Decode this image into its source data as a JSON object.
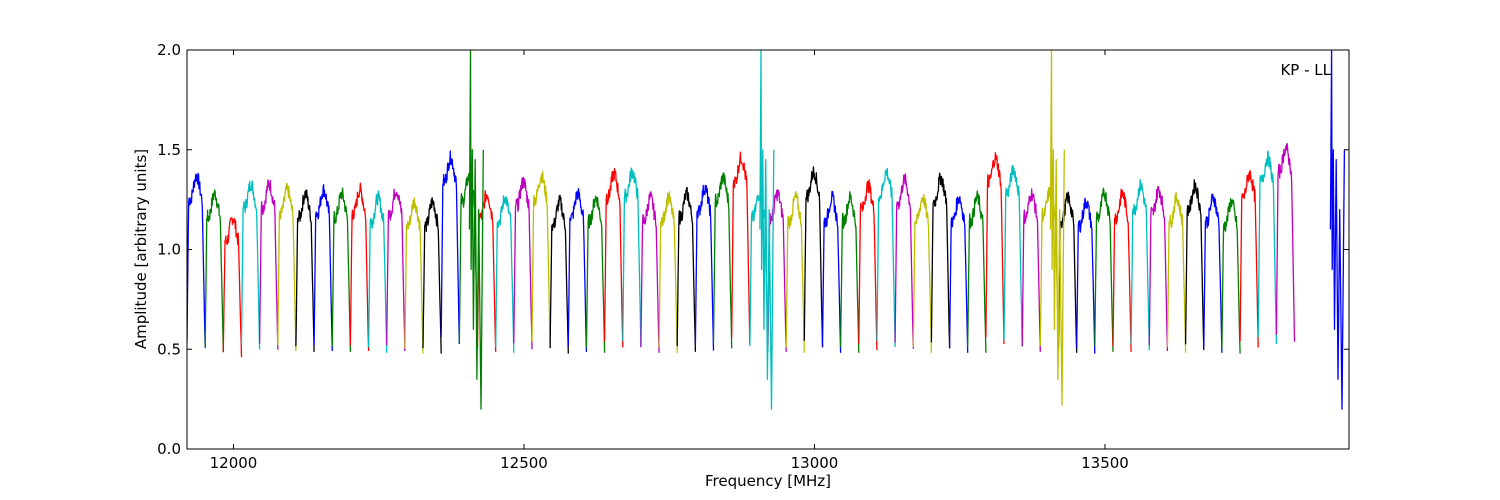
{
  "chart_data": {
    "type": "line",
    "title": "",
    "xlabel": "Frequency [MHz]",
    "ylabel": "Amplitude [arbitrary units]",
    "annotation": "KP - LL",
    "xlim": [
      11920,
      13920
    ],
    "ylim": [
      0.0,
      2.0
    ],
    "xticks": [
      12000,
      12500,
      13000,
      13500
    ],
    "yticks": [
      0.0,
      0.5,
      1.0,
      1.5,
      2.0
    ],
    "xtick_labels": [
      "12000",
      "12500",
      "13000",
      "13500"
    ],
    "ytick_labels": [
      "0.0",
      "0.5",
      "1.0",
      "1.5",
      "2.0"
    ],
    "grid": false,
    "colors": [
      "#0000ff",
      "#008000",
      "#ff0000",
      "#00bfbf",
      "#bf00bf",
      "#bfbf00",
      "#000000"
    ],
    "segment_width_mhz": 31.25,
    "segments_start_mhz": 11920,
    "segment_levels": [
      1.31,
      1.22,
      1.1,
      1.27,
      1.27,
      1.24,
      1.22,
      1.24,
      1.22,
      1.24,
      1.2,
      1.24,
      1.18,
      1.18,
      1.4,
      1.3,
      1.22,
      1.2,
      1.28,
      1.31,
      1.18,
      1.22,
      1.2,
      1.32,
      1.33,
      1.2,
      1.2,
      1.22,
      1.25,
      1.3,
      1.4,
      1.22,
      1.22,
      1.2,
      1.33,
      1.2,
      1.2,
      1.26,
      1.33,
      1.29,
      1.2,
      1.3,
      1.2,
      1.2,
      1.4,
      1.34,
      1.22,
      1.23,
      1.2,
      1.18,
      1.22,
      1.22,
      1.26,
      1.24,
      1.2,
      1.26,
      1.2,
      1.18,
      1.32,
      1.4,
      1.45
    ],
    "spikes": [
      {
        "x": 12408,
        "peak": 2.0,
        "dip": 0.2
      },
      {
        "x": 12908,
        "peak": 2.0,
        "dip": 0.2
      },
      {
        "x": 13408,
        "peak": 2.0,
        "dip": 0.22
      },
      {
        "x": 13890,
        "peak": 2.0,
        "dip": 0.2
      }
    ]
  }
}
